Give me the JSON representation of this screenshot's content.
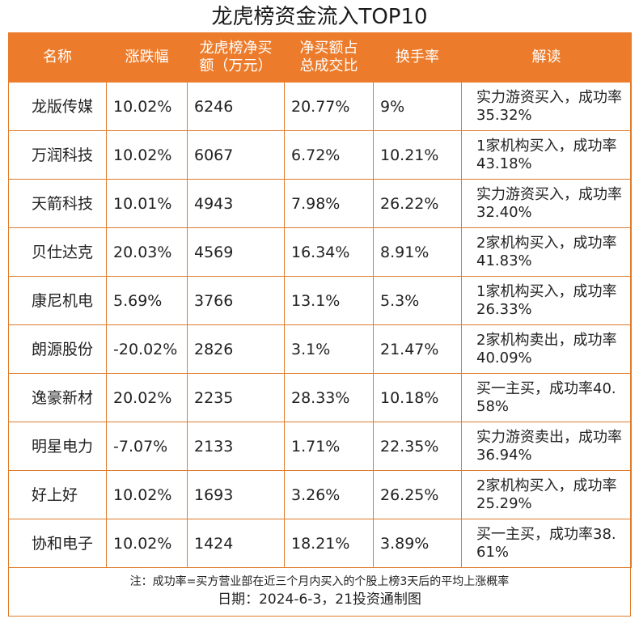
{
  "title": "龙虎榜资金流入TOP10",
  "headers": [
    "名称",
    "涨跌幅",
    "龙虎榜净买额（万元）",
    "净买额占总成交比",
    "换手率",
    "解读"
  ],
  "header_lines": [
    [
      "名称"
    ],
    [
      "涨跌幅"
    ],
    [
      "龙虎榜净买",
      "额（万元）"
    ],
    [
      "净买额占",
      "总成交比"
    ],
    [
      "换手率"
    ],
    [
      "解读"
    ]
  ],
  "rows": [
    {
      "name": "龙版传媒",
      "change": "10.02%",
      "net_buy": "6246",
      "ratio": "20.77%",
      "turnover": "9%",
      "note": "实力游资买入，成功率35.32%"
    },
    {
      "name": "万润科技",
      "change": "10.02%",
      "net_buy": "6067",
      "ratio": "6.72%",
      "turnover": "10.21%",
      "note": "1家机构买入，成功率43.18%"
    },
    {
      "name": "天箭科技",
      "change": "10.01%",
      "net_buy": "4943",
      "ratio": "7.98%",
      "turnover": "26.22%",
      "note": "实力游资买入，成功率32.40%"
    },
    {
      "name": "贝仕达克",
      "change": "20.03%",
      "net_buy": "4569",
      "ratio": "16.34%",
      "turnover": "8.91%",
      "note": "2家机构买入，成功率41.83%"
    },
    {
      "name": "康尼机电",
      "change": "5.69%",
      "net_buy": "3766",
      "ratio": "13.1%",
      "turnover": "5.3%",
      "note": "1家机构买入，成功率26.33%"
    },
    {
      "name": "朗源股份",
      "change": "-20.02%",
      "net_buy": "2826",
      "ratio": "3.1%",
      "turnover": "21.47%",
      "note": "2家机构卖出，成功率40.09%"
    },
    {
      "name": "逸豪新材",
      "change": "20.02%",
      "net_buy": "2235",
      "ratio": "28.33%",
      "turnover": "10.18%",
      "note": "买一主买，成功率40.58%"
    },
    {
      "name": "明星电力",
      "change": "-7.07%",
      "net_buy": "2133",
      "ratio": "1.71%",
      "turnover": "22.35%",
      "note": "实力游资卖出，成功率36.94%"
    },
    {
      "name": "好上好",
      "change": "10.02%",
      "net_buy": "1693",
      "ratio": "3.26%",
      "turnover": "26.25%",
      "note": "2家机构买入，成功率25.29%"
    },
    {
      "name": "协和电子",
      "change": "10.02%",
      "net_buy": "1424",
      "ratio": "18.21%",
      "turnover": "3.89%",
      "note": "买一主买，成功率38.61%"
    }
  ],
  "footnote": "注：成功率=买方营业部在近三个月内买入的个股上榜3天后的平均上涨概率",
  "date_line": "日期：2024-6-3，21投资通制图",
  "colors": {
    "header_bg": "#ec7c2c",
    "border": "#e07b2a",
    "header_text": "#ffffff"
  }
}
